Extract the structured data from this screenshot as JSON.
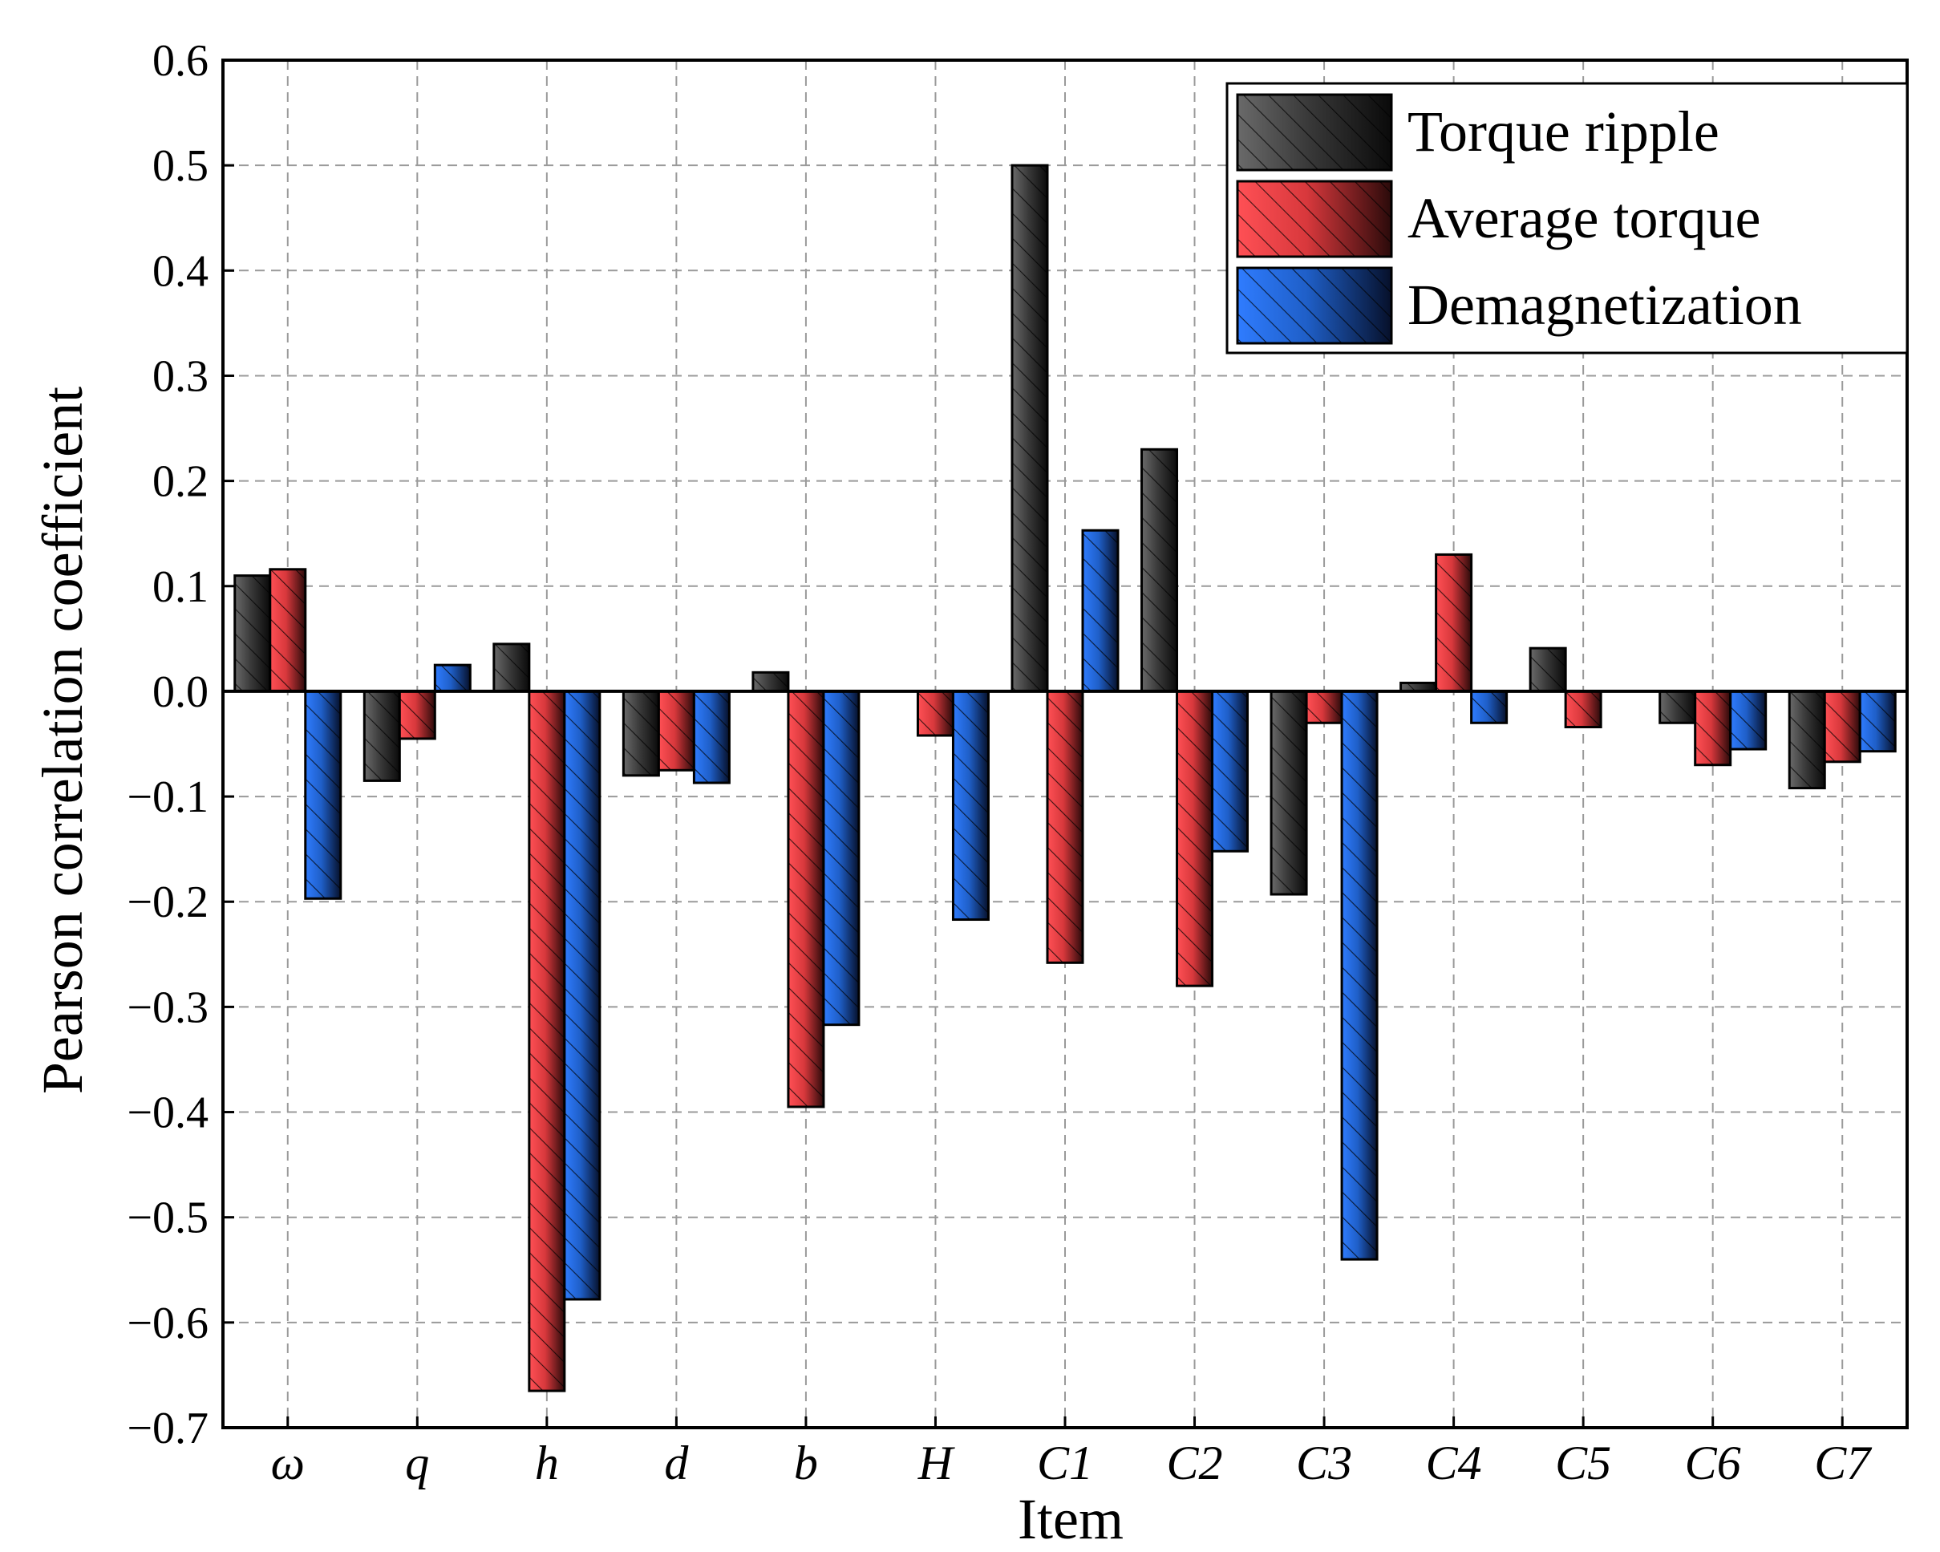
{
  "chart_data": {
    "type": "bar",
    "title": "",
    "xlabel": "Item",
    "ylabel": "Pearson correlation coefficient",
    "ylim": [
      -0.7,
      0.6
    ],
    "yticks": [
      0.6,
      0.5,
      0.4,
      0.3,
      0.2,
      0.1,
      0.0,
      -0.1,
      -0.2,
      -0.3,
      -0.4,
      -0.5,
      -0.6,
      -0.7
    ],
    "ytick_labels": [
      "0.6",
      "0.5",
      "0.4",
      "0.3",
      "0.2",
      "0.1",
      "0.0",
      "−0.1",
      "−0.2",
      "−0.3",
      "−0.4",
      "−0.5",
      "−0.6",
      "−0.7"
    ],
    "categories": [
      "ω",
      "q",
      "h",
      "d",
      "b",
      "H",
      "C1",
      "C2",
      "C3",
      "C4",
      "C5",
      "C6",
      "C7"
    ],
    "grid": true,
    "legend_position": "top-right",
    "series": [
      {
        "name": "Torque ripple",
        "color": "#3a3a3a",
        "values": [
          0.11,
          -0.085,
          0.045,
          -0.08,
          0.018,
          0.0,
          0.5,
          0.23,
          -0.193,
          0.008,
          0.041,
          -0.03,
          -0.092
        ]
      },
      {
        "name": "Average torque",
        "color": "#d8383c",
        "values": [
          0.116,
          -0.045,
          -0.665,
          -0.075,
          -0.395,
          -0.042,
          -0.258,
          -0.28,
          -0.03,
          0.13,
          -0.034,
          -0.07,
          -0.067
        ]
      },
      {
        "name": "Demagnetization",
        "color": "#1f5fc8",
        "values": [
          -0.197,
          0.025,
          -0.578,
          -0.087,
          -0.317,
          -0.217,
          0.153,
          -0.152,
          -0.54,
          -0.03,
          0.0,
          -0.055,
          -0.057
        ]
      }
    ]
  }
}
